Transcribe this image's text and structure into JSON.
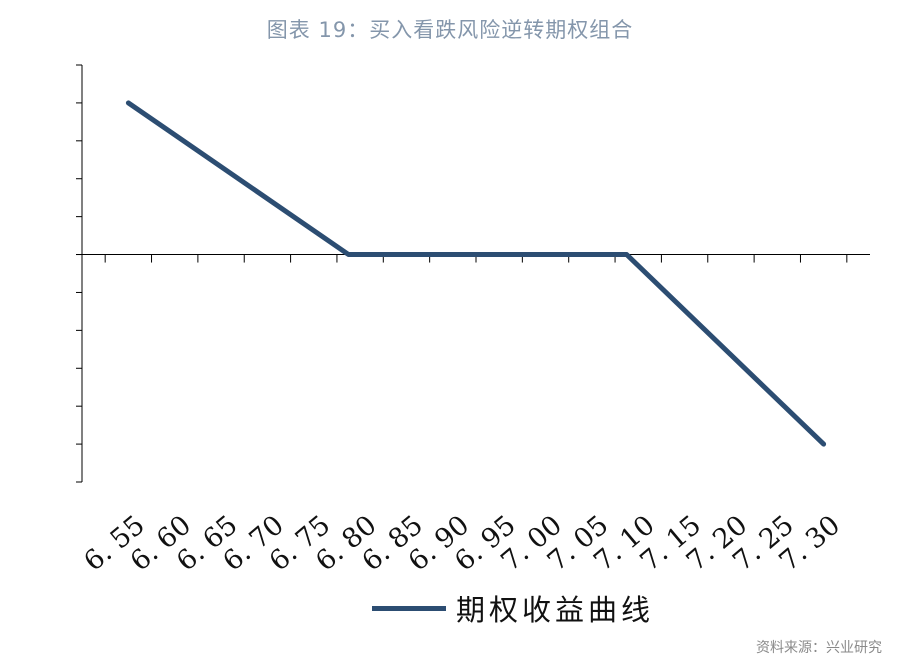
{
  "chart_data": {
    "type": "line",
    "title": "图表 19：买入看跌风险逆转期权组合",
    "categories": [
      "6.55",
      "6.60",
      "6.65",
      "6.70",
      "6.75",
      "6.80",
      "6.85",
      "6.90",
      "6.95",
      "7.00",
      "7.05",
      "7.10",
      "7.15",
      "7.20",
      "7.25",
      "7.30"
    ],
    "x_tick_labels": [
      "6. 55",
      "6. 60",
      "6. 65",
      "6. 70",
      "6. 75",
      "6. 80",
      "6. 85",
      "6. 90",
      "6. 95",
      "7. 00",
      "7. 05",
      "7. 10",
      "7. 15",
      "7. 20",
      "7. 25",
      "7. 30"
    ],
    "series": [
      {
        "name": "期权收益曲线",
        "x": [
          6.55,
          6.7875,
          7.0875,
          7.3
        ],
        "y": [
          4,
          0,
          0,
          -5
        ],
        "color": "#2c4d72"
      }
    ],
    "xlim": [
      6.5,
      7.35
    ],
    "ylim": [
      -6,
      5
    ],
    "y_tick_step": 1,
    "xlabel": "",
    "ylabel": "",
    "grid": false,
    "legend_position": "bottom"
  },
  "source": "资料来源：兴业研究"
}
